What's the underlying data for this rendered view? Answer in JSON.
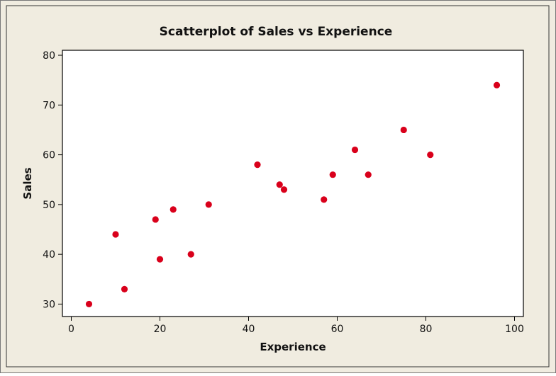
{
  "chart_data": {
    "type": "scatter",
    "title": "Scatterplot of Sales vs Experience",
    "xlabel": "Experience",
    "ylabel": "Sales",
    "xlim": [
      -2,
      102
    ],
    "ylim": [
      27.5,
      81
    ],
    "xticks": [
      0,
      20,
      40,
      60,
      80,
      100
    ],
    "yticks": [
      30,
      40,
      50,
      60,
      70,
      80
    ],
    "grid": false,
    "colors": {
      "outer_background": "#f0ece0",
      "plot_background": "#ffffff",
      "point": "#d9001b",
      "axis": "#000000"
    },
    "series": [
      {
        "name": "Sales vs Experience",
        "x": [
          4,
          10,
          12,
          19,
          20,
          23,
          27,
          31,
          42,
          47,
          48,
          57,
          59,
          64,
          67,
          75,
          81,
          96
        ],
        "y": [
          30,
          44,
          33,
          47,
          39,
          49,
          40,
          50,
          58,
          54,
          53,
          51,
          56,
          61,
          56,
          65,
          60,
          74
        ]
      }
    ]
  }
}
